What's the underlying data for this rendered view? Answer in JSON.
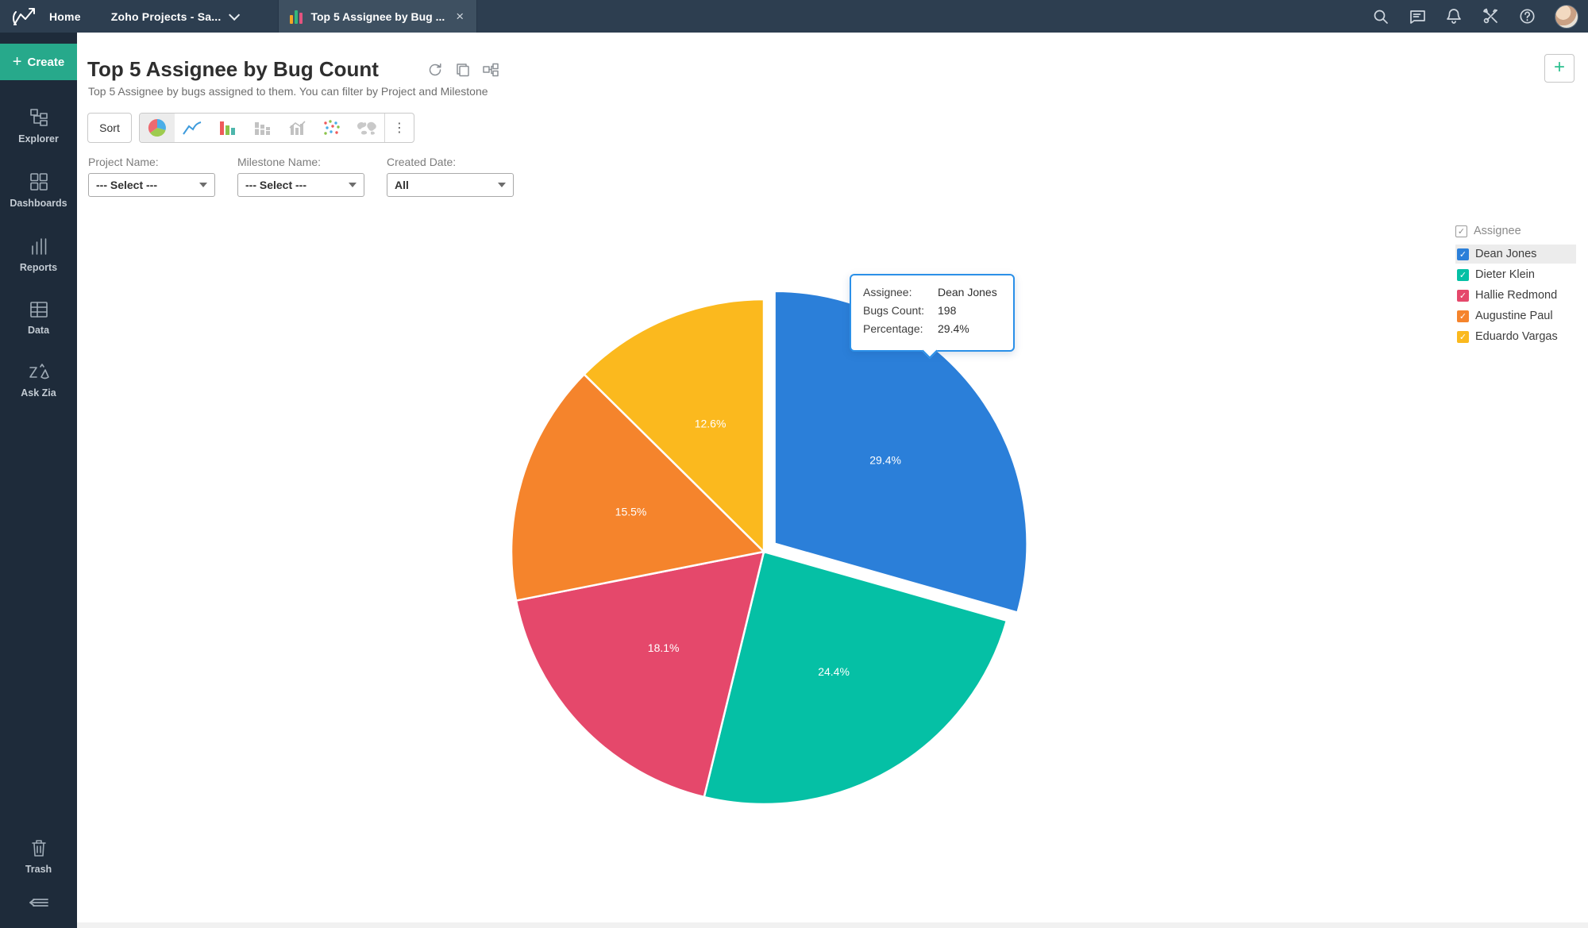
{
  "topbar": {
    "home_label": "Home",
    "workspace_label": "Zoho Projects - Sa...",
    "tab": {
      "label": "Top 5 Assignee by Bug ...",
      "close": "×"
    }
  },
  "sidebar": {
    "create_label": "Create",
    "items": [
      {
        "label": "Explorer"
      },
      {
        "label": "Dashboards"
      },
      {
        "label": "Reports"
      },
      {
        "label": "Data"
      },
      {
        "label": "Ask Zia"
      }
    ],
    "trash_label": "Trash"
  },
  "header": {
    "title": "Top 5 Assignee by Bug Count",
    "subtitle": "Top 5 Assignee by bugs assigned to them. You can filter by Project and Milestone",
    "add_label": "+"
  },
  "toolbar": {
    "sort_label": "Sort",
    "more_label": "⋮",
    "chart_types": [
      "pie",
      "line",
      "bar",
      "stacked-bar",
      "bar-line",
      "scatter",
      "map"
    ],
    "active_chart_type": "pie"
  },
  "filters": [
    {
      "label": "Project Name:",
      "value": "--- Select ---"
    },
    {
      "label": "Milestone Name:",
      "value": "--- Select ---"
    },
    {
      "label": "Created Date:",
      "value": "All"
    }
  ],
  "legend": {
    "header": "Assignee",
    "header_checked": true,
    "highlighted_item": "Dean Jones"
  },
  "tooltip": {
    "rows": [
      {
        "label": "Assignee:",
        "value": "Dean Jones"
      },
      {
        "label": "Bugs Count:",
        "value": "198"
      },
      {
        "label": "Percentage:",
        "value": "29.4%"
      }
    ]
  },
  "chart_data": {
    "type": "pie",
    "title": "Top 5 Assignee by Bug Count",
    "legend_position": "right",
    "label_format": "percent",
    "start_angle_deg": 0,
    "direction": "clockwise",
    "series": [
      {
        "name": "Dean Jones",
        "percentage": 29.4,
        "bugs_count": 198,
        "color": "#2b7fd9",
        "exploded": true,
        "checked": true
      },
      {
        "name": "Dieter Klein",
        "percentage": 24.4,
        "color": "#05c0a5",
        "exploded": false,
        "checked": true
      },
      {
        "name": "Hallie Redmond",
        "percentage": 18.1,
        "color": "#e5486b",
        "exploded": false,
        "checked": true
      },
      {
        "name": "Augustine Paul",
        "percentage": 15.5,
        "color": "#f5842c",
        "exploded": false,
        "checked": true
      },
      {
        "name": "Eduardo Vargas",
        "percentage": 12.6,
        "color": "#fbb91e",
        "exploded": false,
        "checked": true
      }
    ]
  }
}
